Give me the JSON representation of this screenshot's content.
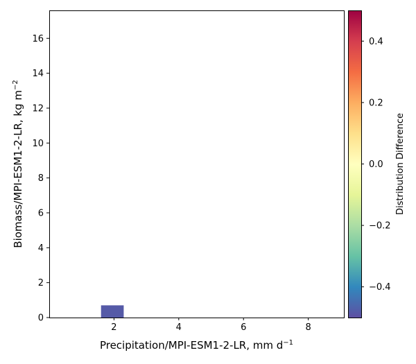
{
  "chart_data": {
    "type": "heatmap",
    "xlabel": {
      "text": "Precipitation/MPI-ESM1-2-LR,  mm d",
      "sup": "−1"
    },
    "ylabel": {
      "text": "Biomass/MPI-ESM1-2-LR,  kg m",
      "sup": "−2"
    },
    "xlim": [
      0.0,
      9.1
    ],
    "ylim": [
      0.0,
      17.6
    ],
    "xticks": [
      {
        "value": 2,
        "label": "2"
      },
      {
        "value": 4,
        "label": "4"
      },
      {
        "value": 6,
        "label": "6"
      },
      {
        "value": 8,
        "label": "8"
      }
    ],
    "yticks": [
      {
        "value": 0,
        "label": "0"
      },
      {
        "value": 2,
        "label": "2"
      },
      {
        "value": 4,
        "label": "4"
      },
      {
        "value": 6,
        "label": "6"
      },
      {
        "value": 8,
        "label": "8"
      },
      {
        "value": 10,
        "label": "10"
      },
      {
        "value": 12,
        "label": "12"
      },
      {
        "value": 14,
        "label": "14"
      },
      {
        "value": 16,
        "label": "16"
      }
    ],
    "cells": [
      {
        "x0": 1.6,
        "x1": 2.3,
        "y0": 0.0,
        "y1": 0.7,
        "value": -0.48
      }
    ],
    "colorbar": {
      "label": "Distribution Difference",
      "range": [
        -0.5,
        0.5
      ],
      "ticks": [
        {
          "value": 0.4,
          "label": "0.4"
        },
        {
          "value": 0.2,
          "label": "0.2"
        },
        {
          "value": 0.0,
          "label": "0.0"
        },
        {
          "value": -0.2,
          "label": "−0.2"
        },
        {
          "value": -0.4,
          "label": "−0.4"
        }
      ],
      "colormap": "Spectral",
      "colormap_stops": [
        "#5e4fa2",
        "#3288bd",
        "#66c2a5",
        "#abdda4",
        "#e6f598",
        "#ffffbf",
        "#fee08b",
        "#fdae61",
        "#f46d43",
        "#d53e4f",
        "#9e0142"
      ]
    }
  }
}
